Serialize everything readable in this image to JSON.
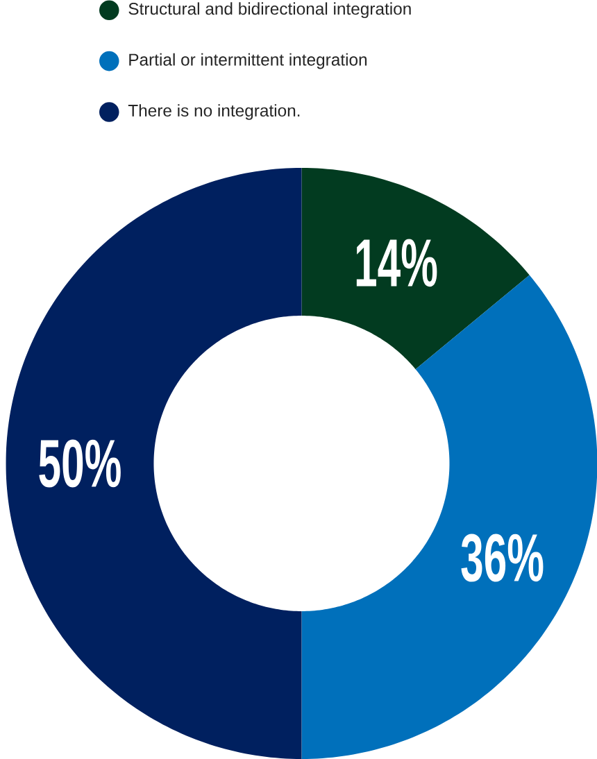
{
  "chart_data": {
    "type": "donut",
    "categories": [
      "Structural and bidirectional integration",
      "Partial or intermittent integration",
      "There is no integration."
    ],
    "values": [
      14,
      36,
      50
    ],
    "value_labels": [
      "14%",
      "36%",
      "50%"
    ],
    "colors": [
      "#023b20",
      "#0070bb",
      "#00205f"
    ],
    "legend": "top"
  }
}
